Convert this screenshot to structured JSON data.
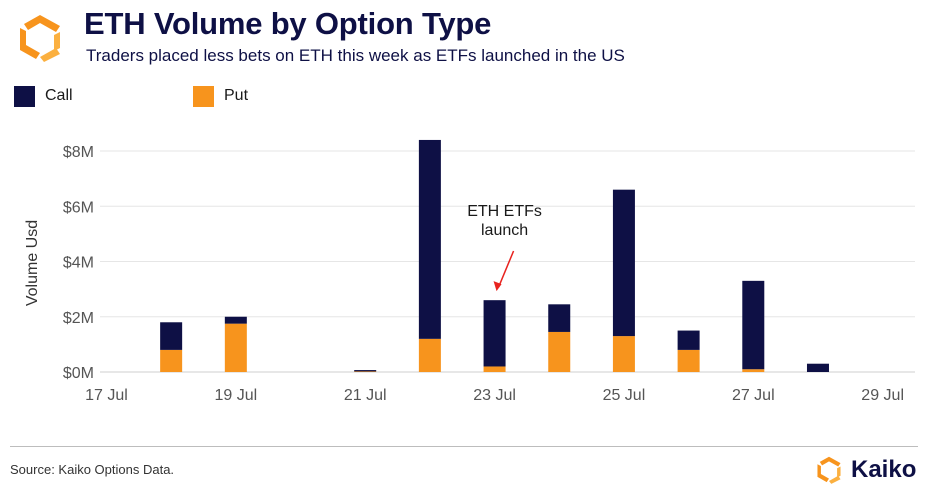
{
  "header": {
    "title": "ETH Volume by Option Type",
    "subtitle": "Traders placed less bets on ETH this week as ETFs launched in the US",
    "logo_icon": "kaiko-logo-icon"
  },
  "footer": {
    "source": "Source: Kaiko Options Data.",
    "brand": "Kaiko",
    "brand_icon": "kaiko-logo-icon"
  },
  "colors": {
    "call": "#0e1045",
    "put": "#f7941d",
    "annotation_arrow": "#e8231f",
    "grid": "#e6e6e6"
  },
  "chart_data": {
    "type": "bar",
    "stacked": true,
    "ylabel": "Volume Usd",
    "xlabel": "",
    "ylim": [
      0,
      8.5
    ],
    "y_unit": "USD millions",
    "y_ticks": [
      "$0M",
      "$2M",
      "$4M",
      "$6M",
      "$8M"
    ],
    "y_tick_values": [
      0,
      2,
      4,
      6,
      8
    ],
    "x_ticks": [
      "17 Jul",
      "19 Jul",
      "21 Jul",
      "23 Jul",
      "25 Jul",
      "27 Jul",
      "29 Jul"
    ],
    "x_tick_days": [
      17,
      19,
      21,
      23,
      25,
      27,
      29
    ],
    "x_range_days": [
      16.9,
      29.5
    ],
    "categories": [
      "18 Jul",
      "19 Jul",
      "21 Jul",
      "22 Jul",
      "23 Jul",
      "24 Jul",
      "25 Jul",
      "26 Jul",
      "27 Jul",
      "28 Jul"
    ],
    "category_days": [
      18,
      19,
      21,
      22,
      23,
      24,
      25,
      26,
      27,
      28
    ],
    "series": [
      {
        "name": "Put",
        "values": [
          0.8,
          1.75,
          0.02,
          1.2,
          0.2,
          1.45,
          1.3,
          0.8,
          0.1,
          0.0
        ]
      },
      {
        "name": "Call",
        "values": [
          1.0,
          0.25,
          0.05,
          7.2,
          2.4,
          1.0,
          5.3,
          0.7,
          3.2,
          0.3
        ]
      }
    ],
    "legend": {
      "position": "top-left",
      "entries": [
        "Call",
        "Put"
      ]
    },
    "annotations": [
      {
        "text_lines": [
          "ETH ETFs",
          "launch"
        ],
        "target_day": 23,
        "target_value": 2.6
      }
    ],
    "grid": true
  }
}
